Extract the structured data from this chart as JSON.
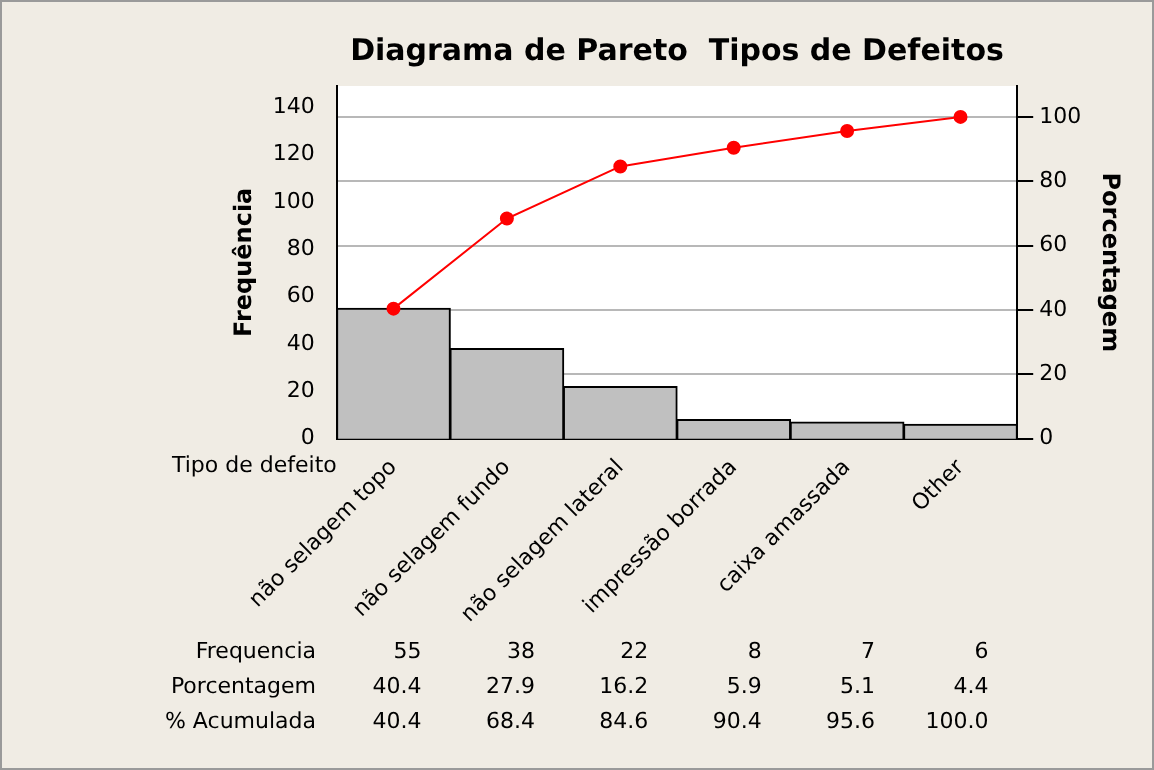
{
  "chart_data": {
    "type": "bar",
    "title": "Diagrama de Pareto  Tipos de Defeitos",
    "xlabel": "Tipo de defeito",
    "ylabel": "Frequência",
    "y2label": "Porcentagem",
    "categories": [
      "não selagem topo",
      "não selagem fundo",
      "não selagem lateral",
      "impressão borrada",
      "caixa amassada",
      "Other"
    ],
    "series": [
      {
        "color": "#c0c0c0",
        "values": [
          55,
          38,
          22,
          8,
          7,
          6
        ],
        "value_labels": [
          "55",
          "38",
          "22",
          "8",
          "7",
          "6"
        ]
      },
      {
        "type": "line",
        "axis": "y2",
        "color": "#ff0000",
        "marker": "circle",
        "values": [
          40.4,
          68.4,
          84.6,
          90.4,
          95.6,
          100.0
        ],
        "value_labels": [
          "40.4",
          "68.4",
          "84.6",
          "90.4",
          "95.6",
          "100.0"
        ]
      }
    ],
    "ylim": [
      0,
      149
    ],
    "yticks": [
      0,
      20,
      40,
      60,
      80,
      100,
      120,
      140
    ],
    "y2lim": [
      0,
      109.6
    ],
    "y2ticks": [
      0,
      20,
      40,
      60,
      80,
      100
    ],
    "annotations": [
      "Frequencia",
      "Porcentagem",
      "% Acumulada",
      "40.4",
      "27.9",
      "16.2",
      "5.9",
      "5.1",
      "4.4"
    ],
    "grid": "y",
    "legend": false
  }
}
